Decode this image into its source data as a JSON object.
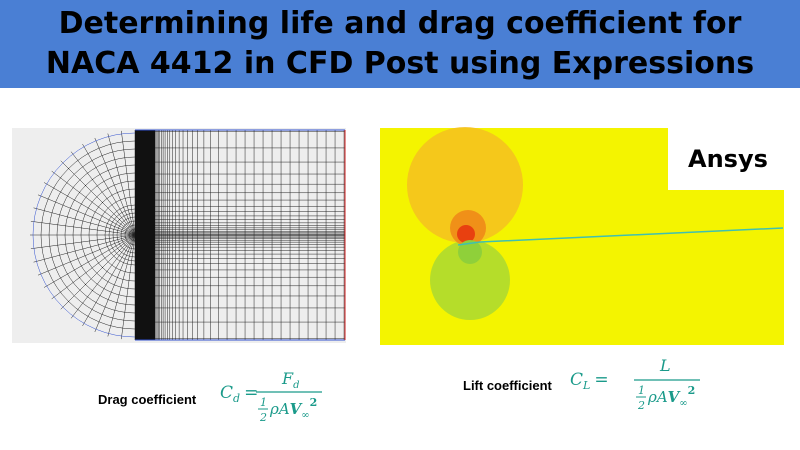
{
  "header": {
    "title": "Determining life and drag coefficient for NACA 4412 in CFD Post using Expressions"
  },
  "logo": {
    "text": "Ansys"
  },
  "drag": {
    "label": "Drag coefficient",
    "formula": {
      "lhs": "C",
      "lhs_sub": "d",
      "equals": "=",
      "numerator": "F",
      "numerator_sub": "d",
      "half_num": "1",
      "half_den": "2",
      "denominator": "ρA",
      "velocity": "V",
      "velocity_sub": "∞",
      "power": "2"
    }
  },
  "lift": {
    "label": "Lift coefficient",
    "formula": {
      "lhs": "C",
      "lhs_sub": "L",
      "equals": "=",
      "numerator": "L",
      "half_num": "1",
      "half_den": "2",
      "denominator": "ρA",
      "velocity": "V",
      "velocity_sub": "∞",
      "power": "2"
    }
  }
}
